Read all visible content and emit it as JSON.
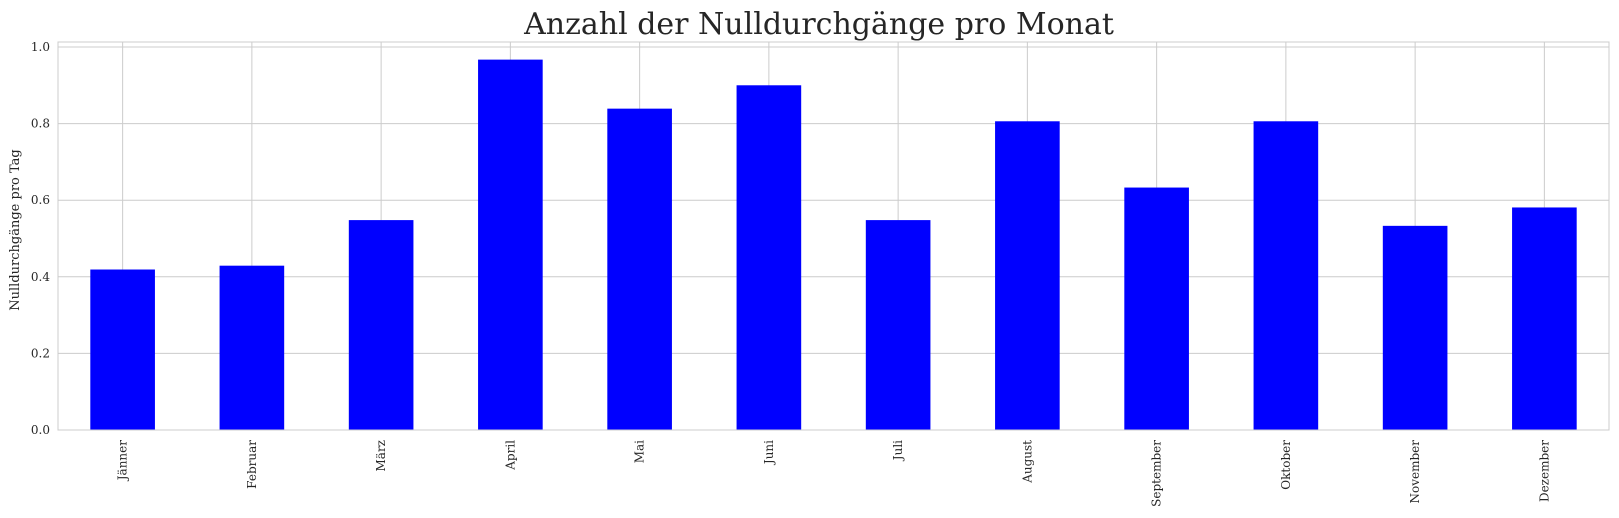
{
  "chart_data": {
    "type": "bar",
    "title": "Anzahl der Nulldurchgänge pro Monat",
    "xlabel": "",
    "ylabel": "Nulldurchgänge pro Tag",
    "categories": [
      "Jänner",
      "Februar",
      "März",
      "April",
      "Mai",
      "Juni",
      "Juli",
      "August",
      "September",
      "Oktober",
      "November",
      "Dezember"
    ],
    "values": [
      0.419,
      0.429,
      0.548,
      0.967,
      0.839,
      0.9,
      0.548,
      0.806,
      0.633,
      0.806,
      0.533,
      0.581
    ],
    "ylim": [
      0,
      1.013
    ],
    "yticks": [
      0.0,
      0.2,
      0.4,
      0.6,
      0.8,
      1.0
    ],
    "ytick_labels": [
      "0.0",
      "0.2",
      "0.4",
      "0.6",
      "0.8",
      "1.0"
    ],
    "bar_color": "#0000ff",
    "grid": true,
    "legend": "none"
  }
}
